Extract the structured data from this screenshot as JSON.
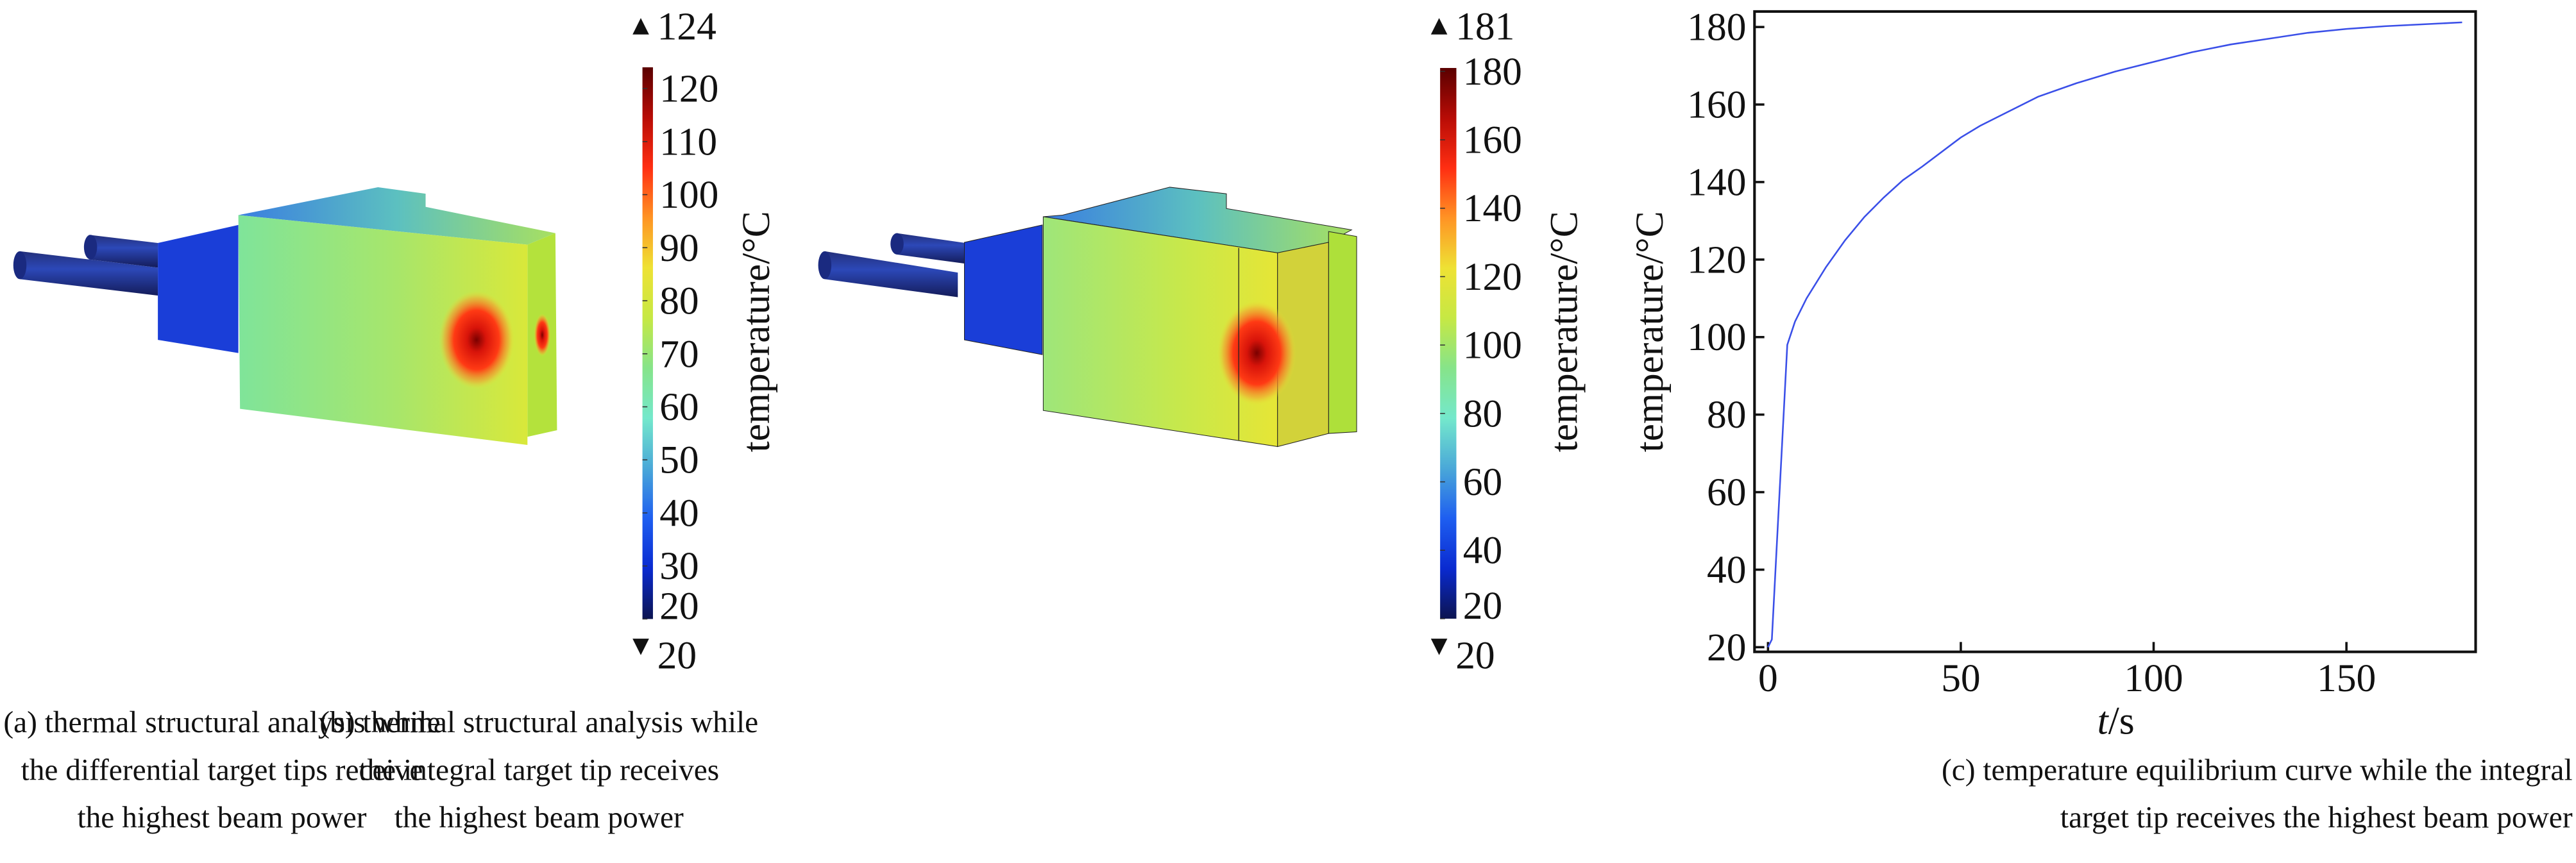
{
  "panel_a": {
    "colorbar": {
      "max_marker": "124",
      "min_marker": "20",
      "range": [
        20,
        124
      ],
      "ticks": [
        "20",
        "30",
        "40",
        "50",
        "60",
        "70",
        "80",
        "90",
        "100",
        "110",
        "120"
      ],
      "label": "temperature/°C"
    },
    "caption": [
      "(a) thermal structural analysis while",
      "the differential target tips receive",
      "the highest beam power"
    ]
  },
  "panel_b": {
    "colorbar": {
      "max_marker": "181",
      "min_marker": "20",
      "range": [
        20,
        181
      ],
      "ticks": [
        "20",
        "40",
        "60",
        "80",
        "100",
        "120",
        "140",
        "160",
        "180"
      ],
      "label": "temperature/°C"
    },
    "caption": [
      "(b) thermal structural analysis while",
      "the integral target tip receives",
      "the highest beam power"
    ]
  },
  "colormap": [
    "#0c1450",
    "#0a2ad0",
    "#1e5ef0",
    "#4aa8d8",
    "#74e8cc",
    "#86e48a",
    "#c6e844",
    "#eee234",
    "#ff9424",
    "#ff2e12",
    "#b80c06",
    "#5a0000"
  ],
  "chart_data": {
    "type": "line",
    "title": "",
    "xlabel_italic": "t",
    "xlabel_unit": "/s",
    "ylabel": "temperature/°C",
    "xlim": [
      -3.5,
      183.5
    ],
    "ylim": [
      18.8,
      184
    ],
    "xticks": [
      0,
      50,
      100,
      150
    ],
    "yticks": [
      20,
      40,
      60,
      80,
      100,
      120,
      140,
      160,
      180
    ],
    "grid": false,
    "line_color": "#3a4fe8",
    "series": [
      {
        "x": [
          0,
          1,
          5,
          7,
          10,
          15,
          20,
          25,
          30,
          35,
          40,
          50,
          55,
          60,
          70,
          80,
          90,
          100,
          110,
          120,
          130,
          140,
          150,
          160,
          170,
          180
        ],
        "y": [
          20,
          22,
          98,
          104,
          110,
          118,
          125,
          131,
          136,
          140.5,
          144,
          151.5,
          154.5,
          157,
          162,
          165.5,
          168.5,
          171,
          173.5,
          175.5,
          177,
          178.5,
          179.5,
          180.2,
          180.7,
          181.2
        ]
      }
    ],
    "caption": [
      "(c) temperature equilibrium curve while the integral",
      "target tip receives the highest beam power"
    ]
  }
}
